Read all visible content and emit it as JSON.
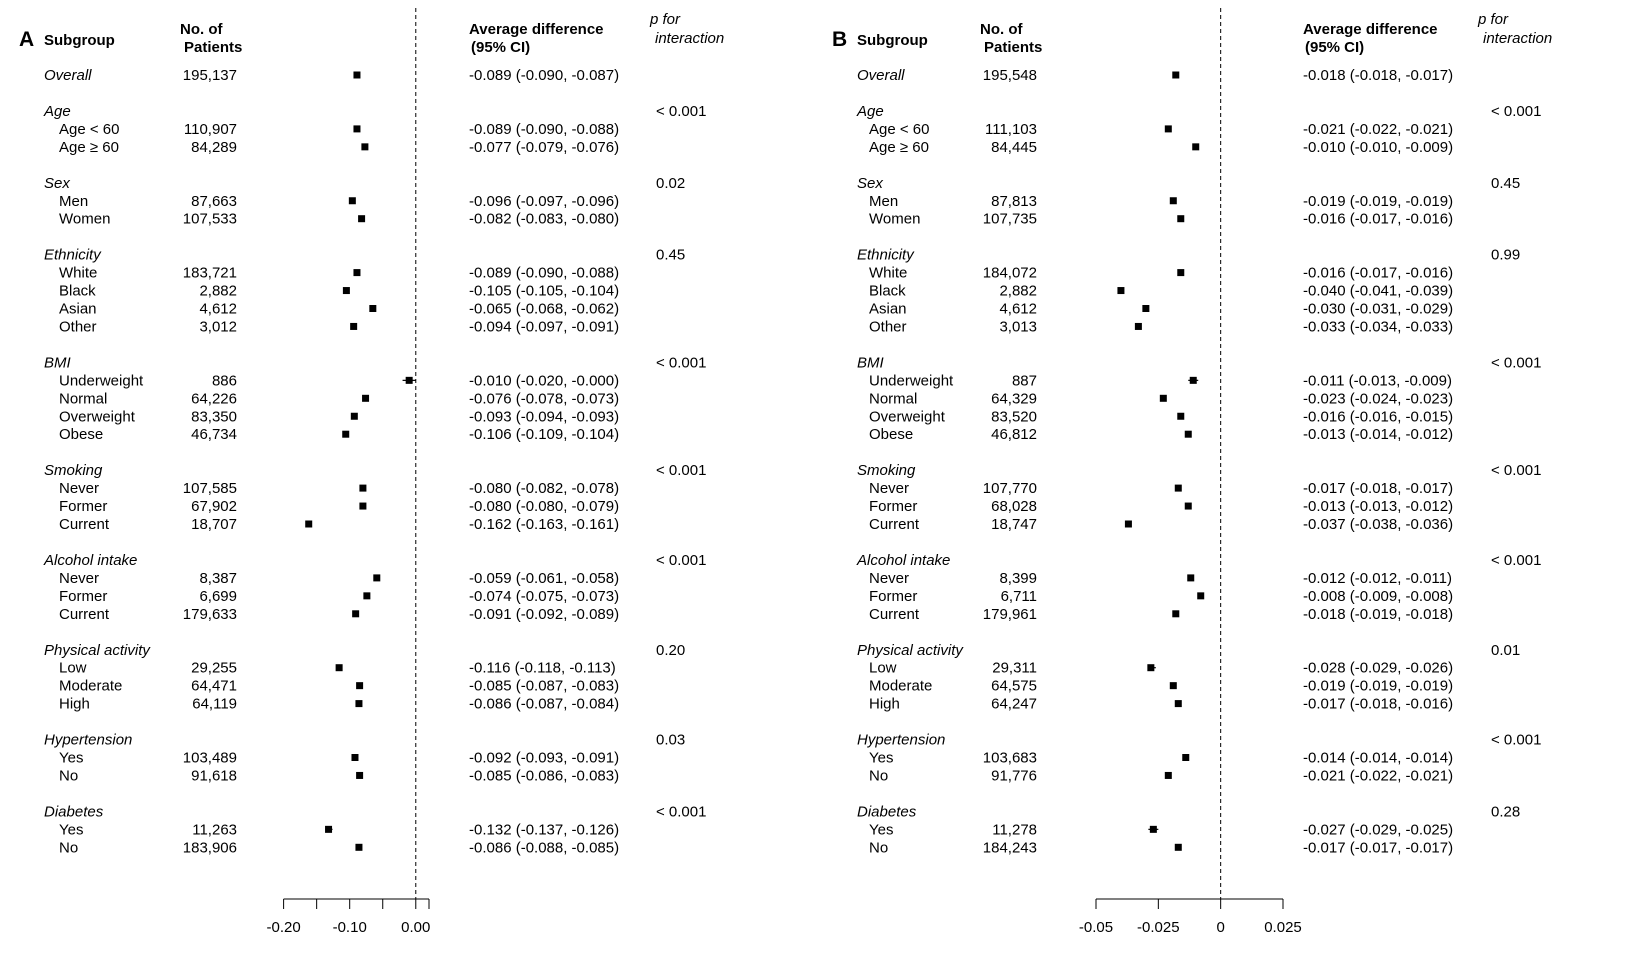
{
  "headers": {
    "subgroup": "Subgroup",
    "patients": [
      "No. of",
      "Patients"
    ],
    "avgdiff": [
      "Average difference",
      "(95% CI)"
    ],
    "pint": [
      "p for",
      "interaction"
    ]
  },
  "chart_data": [
    {
      "type": "forest",
      "panel_label": "A",
      "xlim": [
        -0.21,
        0.02
      ],
      "xticks": [
        -0.2,
        -0.15,
        -0.1,
        -0.05,
        0.0,
        0.02
      ],
      "xtick_labels": [
        {
          "value": -0.2,
          "label": "-0.20"
        },
        {
          "value": -0.1,
          "label": "-0.10"
        },
        {
          "value": 0.0,
          "label": "0.00"
        }
      ],
      "reference_line": 0,
      "rows": [
        {
          "label": "Overall",
          "italic": true,
          "n": "195,137",
          "est": -0.089,
          "lo": -0.09,
          "hi": -0.087,
          "ci": "-0.089 (-0.090, -0.087)"
        },
        {
          "label": "Age",
          "italic": true,
          "p": "< 0.001"
        },
        {
          "label": "Age < 60",
          "n": "110,907",
          "est": -0.089,
          "lo": -0.09,
          "hi": -0.088,
          "ci": "-0.089 (-0.090, -0.088)"
        },
        {
          "label": "Age ≥ 60",
          "n": "84,289",
          "est": -0.077,
          "lo": -0.079,
          "hi": -0.076,
          "ci": "-0.077 (-0.079, -0.076)"
        },
        {
          "label": "Sex",
          "italic": true,
          "p": "0.02"
        },
        {
          "label": "Men",
          "n": "87,663",
          "est": -0.096,
          "lo": -0.097,
          "hi": -0.096,
          "ci": "-0.096 (-0.097, -0.096)"
        },
        {
          "label": "Women",
          "n": "107,533",
          "est": -0.082,
          "lo": -0.083,
          "hi": -0.08,
          "ci": "-0.082 (-0.083, -0.080)"
        },
        {
          "label": "Ethnicity",
          "italic": true,
          "p": "0.45"
        },
        {
          "label": "White",
          "n": "183,721",
          "est": -0.089,
          "lo": -0.09,
          "hi": -0.088,
          "ci": "-0.089 (-0.090, -0.088)"
        },
        {
          "label": "Black",
          "n": "2,882",
          "est": -0.105,
          "lo": -0.105,
          "hi": -0.104,
          "ci": "-0.105 (-0.105, -0.104)"
        },
        {
          "label": "Asian",
          "n": "4,612",
          "est": -0.065,
          "lo": -0.068,
          "hi": -0.062,
          "ci": "-0.065 (-0.068, -0.062)"
        },
        {
          "label": "Other",
          "n": "3,012",
          "est": -0.094,
          "lo": -0.097,
          "hi": -0.091,
          "ci": "-0.094 (-0.097, -0.091)"
        },
        {
          "label": "BMI",
          "italic": true,
          "p": "< 0.001"
        },
        {
          "label": "Underweight",
          "n": "886",
          "est": -0.01,
          "lo": -0.02,
          "hi": -0.0,
          "ci": "-0.010 (-0.020, -0.000)"
        },
        {
          "label": "Normal",
          "n": "64,226",
          "est": -0.076,
          "lo": -0.078,
          "hi": -0.073,
          "ci": "-0.076 (-0.078, -0.073)"
        },
        {
          "label": "Overweight",
          "n": "83,350",
          "est": -0.093,
          "lo": -0.094,
          "hi": -0.093,
          "ci": "-0.093 (-0.094, -0.093)"
        },
        {
          "label": "Obese",
          "n": "46,734",
          "est": -0.106,
          "lo": -0.109,
          "hi": -0.104,
          "ci": "-0.106 (-0.109, -0.104)"
        },
        {
          "label": "Smoking",
          "italic": true,
          "p": "< 0.001"
        },
        {
          "label": "Never",
          "n": "107,585",
          "est": -0.08,
          "lo": -0.082,
          "hi": -0.078,
          "ci": "-0.080 (-0.082, -0.078)"
        },
        {
          "label": "Former",
          "n": "67,902",
          "est": -0.08,
          "lo": -0.08,
          "hi": -0.079,
          "ci": "-0.080 (-0.080, -0.079)"
        },
        {
          "label": "Current",
          "n": "18,707",
          "est": -0.162,
          "lo": -0.163,
          "hi": -0.161,
          "ci": "-0.162 (-0.163, -0.161)"
        },
        {
          "label": "Alcohol intake",
          "italic": true,
          "p": "< 0.001"
        },
        {
          "label": "Never",
          "n": "8,387",
          "est": -0.059,
          "lo": -0.061,
          "hi": -0.058,
          "ci": "-0.059 (-0.061, -0.058)"
        },
        {
          "label": "Former",
          "n": "6,699",
          "est": -0.074,
          "lo": -0.075,
          "hi": -0.073,
          "ci": "-0.074 (-0.075, -0.073)"
        },
        {
          "label": "Current",
          "n": "179,633",
          "est": -0.091,
          "lo": -0.092,
          "hi": -0.089,
          "ci": "-0.091 (-0.092, -0.089)"
        },
        {
          "label": "Physical activity",
          "italic": true,
          "p": "0.20"
        },
        {
          "label": "Low",
          "n": "29,255",
          "est": -0.116,
          "lo": -0.118,
          "hi": -0.113,
          "ci": "-0.116 (-0.118, -0.113)"
        },
        {
          "label": "Moderate",
          "n": "64,471",
          "est": -0.085,
          "lo": -0.087,
          "hi": -0.083,
          "ci": "-0.085 (-0.087, -0.083)"
        },
        {
          "label": "High",
          "n": "64,119",
          "est": -0.086,
          "lo": -0.087,
          "hi": -0.084,
          "ci": "-0.086 (-0.087, -0.084)"
        },
        {
          "label": "Hypertension",
          "italic": true,
          "p": "0.03"
        },
        {
          "label": "Yes",
          "n": "103,489",
          "est": -0.092,
          "lo": -0.093,
          "hi": -0.091,
          "ci": "-0.092 (-0.093, -0.091)"
        },
        {
          "label": "No",
          "n": "91,618",
          "est": -0.085,
          "lo": -0.086,
          "hi": -0.083,
          "ci": "-0.085 (-0.086, -0.083)"
        },
        {
          "label": "Diabetes",
          "italic": true,
          "p": "< 0.001"
        },
        {
          "label": "Yes",
          "n": "11,263",
          "est": -0.132,
          "lo": -0.137,
          "hi": -0.126,
          "ci": "-0.132 (-0.137, -0.126)"
        },
        {
          "label": "No",
          "n": "183,906",
          "est": -0.086,
          "lo": -0.088,
          "hi": -0.085,
          "ci": "-0.086 (-0.088, -0.085)"
        }
      ]
    },
    {
      "type": "forest",
      "panel_label": "B",
      "xlim": [
        -0.05,
        0.025
      ],
      "xticks": [
        -0.05,
        -0.025,
        0,
        0.025
      ],
      "xtick_labels": [
        {
          "value": -0.05,
          "label": "-0.05"
        },
        {
          "value": -0.025,
          "label": "-0.025"
        },
        {
          "value": 0,
          "label": "0"
        },
        {
          "value": 0.025,
          "label": "0.025"
        }
      ],
      "reference_line": 0,
      "rows": [
        {
          "label": "Overall",
          "italic": true,
          "n": "195,548",
          "est": -0.018,
          "lo": -0.018,
          "hi": -0.017,
          "ci": "-0.018 (-0.018, -0.017)"
        },
        {
          "label": "Age",
          "italic": true,
          "p": "< 0.001"
        },
        {
          "label": "Age < 60",
          "n": "111,103",
          "est": -0.021,
          "lo": -0.022,
          "hi": -0.021,
          "ci": "-0.021 (-0.022, -0.021)"
        },
        {
          "label": "Age ≥ 60",
          "n": "84,445",
          "est": -0.01,
          "lo": -0.01,
          "hi": -0.009,
          "ci": "-0.010 (-0.010, -0.009)"
        },
        {
          "label": "Sex",
          "italic": true,
          "p": "0.45"
        },
        {
          "label": "Men",
          "n": "87,813",
          "est": -0.019,
          "lo": -0.019,
          "hi": -0.019,
          "ci": "-0.019 (-0.019, -0.019)"
        },
        {
          "label": "Women",
          "n": "107,735",
          "est": -0.016,
          "lo": -0.017,
          "hi": -0.016,
          "ci": "-0.016 (-0.017, -0.016)"
        },
        {
          "label": "Ethnicity",
          "italic": true,
          "p": "0.99"
        },
        {
          "label": "White",
          "n": "184,072",
          "est": -0.016,
          "lo": -0.017,
          "hi": -0.016,
          "ci": "-0.016 (-0.017, -0.016)"
        },
        {
          "label": "Black",
          "n": "2,882",
          "est": -0.04,
          "lo": -0.041,
          "hi": -0.039,
          "ci": "-0.040 (-0.041, -0.039)"
        },
        {
          "label": "Asian",
          "n": "4,612",
          "est": -0.03,
          "lo": -0.031,
          "hi": -0.029,
          "ci": "-0.030 (-0.031, -0.029)"
        },
        {
          "label": "Other",
          "n": "3,013",
          "est": -0.033,
          "lo": -0.034,
          "hi": -0.033,
          "ci": "-0.033 (-0.034, -0.033)"
        },
        {
          "label": "BMI",
          "italic": true,
          "p": "< 0.001"
        },
        {
          "label": "Underweight",
          "n": "887",
          "est": -0.011,
          "lo": -0.013,
          "hi": -0.009,
          "ci": "-0.011 (-0.013, -0.009)"
        },
        {
          "label": "Normal",
          "n": "64,329",
          "est": -0.023,
          "lo": -0.024,
          "hi": -0.023,
          "ci": "-0.023 (-0.024, -0.023)"
        },
        {
          "label": "Overweight",
          "n": "83,520",
          "est": -0.016,
          "lo": -0.016,
          "hi": -0.015,
          "ci": "-0.016 (-0.016, -0.015)"
        },
        {
          "label": "Obese",
          "n": "46,812",
          "est": -0.013,
          "lo": -0.014,
          "hi": -0.012,
          "ci": "-0.013 (-0.014, -0.012)"
        },
        {
          "label": "Smoking",
          "italic": true,
          "p": "< 0.001"
        },
        {
          "label": "Never",
          "n": "107,770",
          "est": -0.017,
          "lo": -0.018,
          "hi": -0.017,
          "ci": "-0.017 (-0.018, -0.017)"
        },
        {
          "label": "Former",
          "n": "68,028",
          "est": -0.013,
          "lo": -0.013,
          "hi": -0.012,
          "ci": "-0.013 (-0.013, -0.012)"
        },
        {
          "label": "Current",
          "n": "18,747",
          "est": -0.037,
          "lo": -0.038,
          "hi": -0.036,
          "ci": "-0.037 (-0.038, -0.036)"
        },
        {
          "label": "Alcohol intake",
          "italic": true,
          "p": "< 0.001"
        },
        {
          "label": "Never",
          "n": "8,399",
          "est": -0.012,
          "lo": -0.012,
          "hi": -0.011,
          "ci": "-0.012 (-0.012, -0.011)"
        },
        {
          "label": "Former",
          "n": "6,711",
          "est": -0.008,
          "lo": -0.009,
          "hi": -0.008,
          "ci": "-0.008 (-0.009, -0.008)"
        },
        {
          "label": "Current",
          "n": "179,961",
          "est": -0.018,
          "lo": -0.019,
          "hi": -0.018,
          "ci": "-0.018 (-0.019, -0.018)"
        },
        {
          "label": "Physical activity",
          "italic": true,
          "p": "0.01"
        },
        {
          "label": "Low",
          "n": "29,311",
          "est": -0.028,
          "lo": -0.029,
          "hi": -0.026,
          "ci": "-0.028 (-0.029, -0.026)"
        },
        {
          "label": "Moderate",
          "n": "64,575",
          "est": -0.019,
          "lo": -0.019,
          "hi": -0.019,
          "ci": "-0.019 (-0.019, -0.019)"
        },
        {
          "label": "High",
          "n": "64,247",
          "est": -0.017,
          "lo": -0.018,
          "hi": -0.016,
          "ci": "-0.017 (-0.018, -0.016)"
        },
        {
          "label": "Hypertension",
          "italic": true,
          "p": "< 0.001"
        },
        {
          "label": "Yes",
          "n": "103,683",
          "est": -0.014,
          "lo": -0.014,
          "hi": -0.014,
          "ci": "-0.014 (-0.014, -0.014)"
        },
        {
          "label": "No",
          "n": "91,776",
          "est": -0.021,
          "lo": -0.022,
          "hi": -0.021,
          "ci": "-0.021 (-0.022, -0.021)"
        },
        {
          "label": "Diabetes",
          "italic": true,
          "p": "0.28"
        },
        {
          "label": "Yes",
          "n": "11,278",
          "est": -0.027,
          "lo": -0.029,
          "hi": -0.025,
          "ci": "-0.027 (-0.029, -0.025)"
        },
        {
          "label": "No",
          "n": "184,243",
          "est": -0.017,
          "lo": -0.017,
          "hi": -0.017,
          "ci": "-0.017 (-0.017, -0.017)"
        }
      ]
    }
  ]
}
